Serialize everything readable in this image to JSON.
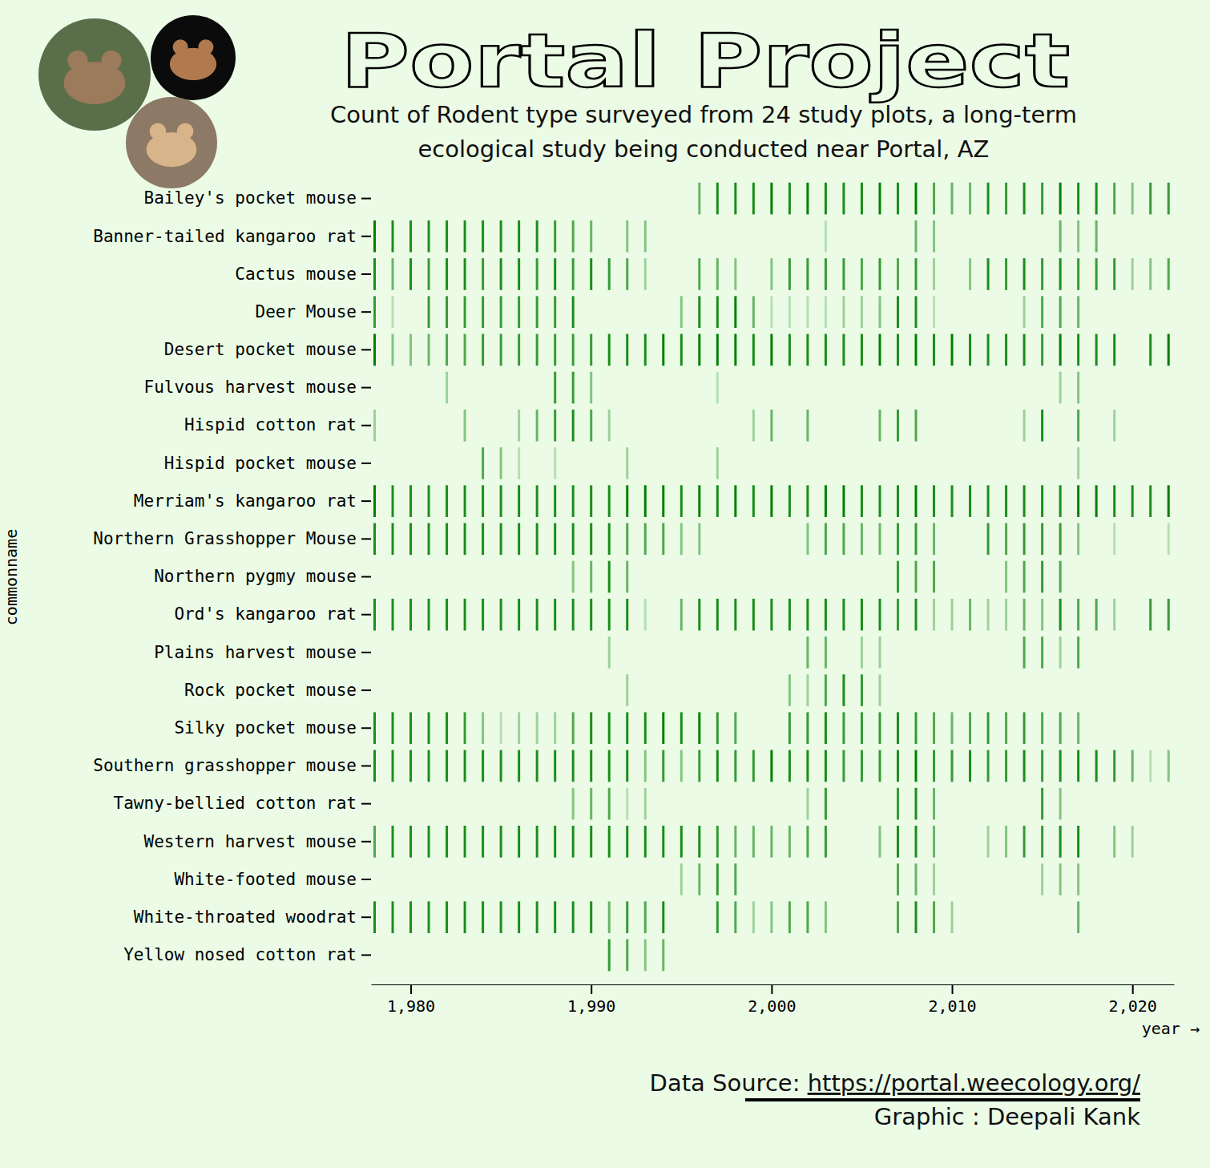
{
  "chart_data": {
    "type": "tick_strip",
    "title": "Portal Project",
    "subtitle": [
      "Count of Rodent type surveyed from 24 study plots, a long-term",
      "ecological study being conducted near Portal, AZ"
    ],
    "x_label": "year →",
    "y_label": "commonname",
    "source_label": "Data Source:",
    "source_url": "https://portal.weecology.org/",
    "credit": "Graphic : Deepali Kank",
    "color": "#008000",
    "xlim": [
      1977.8,
      2022.3
    ],
    "xticks": [
      {
        "value": 1980,
        "label": "1,980"
      },
      {
        "value": 1990,
        "label": "1,990"
      },
      {
        "value": 2000,
        "label": "2,000"
      },
      {
        "value": 2010,
        "label": "2,010"
      },
      {
        "value": 2020,
        "label": "2,020"
      }
    ],
    "series": [
      {
        "name": "Bailey's pocket mouse",
        "x": [
          1996,
          1997,
          1998,
          1999,
          2000,
          2001,
          2002,
          2003,
          2004,
          2005,
          2006,
          2007,
          2008,
          2009,
          2010,
          2011,
          2012,
          2013,
          2014,
          2015,
          2016,
          2017,
          2018,
          2019,
          2020,
          2021,
          2022
        ],
        "values": [
          5,
          8,
          8,
          8,
          9,
          8,
          9,
          8,
          8,
          8,
          9,
          8,
          9,
          6,
          5,
          5,
          8,
          7,
          8,
          7,
          9,
          8,
          8,
          6,
          4,
          7,
          7
        ]
      },
      {
        "name": "Banner-tailed kangaroo rat",
        "x": [
          1978,
          1979,
          1980,
          1981,
          1982,
          1983,
          1984,
          1985,
          1986,
          1987,
          1988,
          1989,
          1990,
          1992,
          1993,
          2003,
          2008,
          2009,
          2016,
          2017,
          2018
        ],
        "values": [
          9,
          8,
          8,
          8,
          8,
          8,
          8,
          8,
          8,
          8,
          7,
          6,
          5,
          4,
          4,
          2,
          5,
          4,
          5,
          4,
          5
        ]
      },
      {
        "name": "Cactus mouse",
        "x": [
          1978,
          1979,
          1980,
          1981,
          1982,
          1983,
          1984,
          1985,
          1986,
          1987,
          1988,
          1989,
          1990,
          1991,
          1992,
          1993,
          1996,
          1997,
          1998,
          2000,
          2001,
          2002,
          2003,
          2004,
          2005,
          2006,
          2007,
          2008,
          2009,
          2011,
          2012,
          2013,
          2014,
          2015,
          2016,
          2017,
          2018,
          2019,
          2020,
          2021,
          2022
        ],
        "values": [
          8,
          5,
          8,
          7,
          8,
          8,
          7,
          8,
          8,
          7,
          8,
          7,
          8,
          7,
          6,
          3,
          6,
          5,
          4,
          4,
          7,
          7,
          7,
          7,
          6,
          7,
          6,
          7,
          3,
          4,
          8,
          7,
          8,
          7,
          8,
          7,
          7,
          7,
          3,
          4,
          6
        ]
      },
      {
        "name": "Deer Mouse",
        "x": [
          1978,
          1979,
          1981,
          1982,
          1983,
          1984,
          1985,
          1986,
          1987,
          1988,
          1989,
          1995,
          1996,
          1997,
          1998,
          1999,
          2000,
          2001,
          2002,
          2003,
          2004,
          2005,
          2006,
          2007,
          2008,
          2009,
          2014,
          2015,
          2016,
          2017
        ],
        "values": [
          7,
          2,
          7,
          7,
          7,
          7,
          7,
          7,
          7,
          7,
          8,
          4,
          8,
          8,
          9,
          5,
          2,
          2,
          2,
          2,
          3,
          3,
          4,
          8,
          8,
          2,
          3,
          6,
          6,
          5
        ]
      },
      {
        "name": "Desert pocket mouse",
        "x": [
          1978,
          1979,
          1980,
          1981,
          1982,
          1983,
          1984,
          1985,
          1986,
          1987,
          1988,
          1989,
          1990,
          1991,
          1992,
          1993,
          1994,
          1995,
          1996,
          1997,
          1998,
          1999,
          2000,
          2001,
          2002,
          2003,
          2004,
          2005,
          2006,
          2007,
          2008,
          2009,
          2010,
          2011,
          2012,
          2013,
          2014,
          2015,
          2016,
          2017,
          2018,
          2019,
          2021,
          2022
        ],
        "values": [
          9,
          4,
          4,
          5,
          6,
          6,
          7,
          7,
          7,
          7,
          7,
          7,
          7,
          8,
          8,
          8,
          9,
          8,
          9,
          9,
          9,
          8,
          9,
          8,
          8,
          8,
          8,
          8,
          9,
          8,
          9,
          8,
          9,
          8,
          8,
          8,
          8,
          7,
          9,
          8,
          8,
          8,
          8,
          9
        ]
      },
      {
        "name": "Fulvous harvest mouse",
        "x": [
          1982,
          1988,
          1989,
          1990,
          1997,
          2016,
          2017
        ],
        "values": [
          3,
          7,
          7,
          4,
          2,
          3,
          4
        ]
      },
      {
        "name": "Hispid cotton rat",
        "x": [
          1978,
          1983,
          1986,
          1987,
          1988,
          1989,
          1990,
          1991,
          1999,
          2000,
          2002,
          2006,
          2007,
          2008,
          2014,
          2015,
          2017,
          2019
        ],
        "values": [
          3,
          4,
          3,
          5,
          7,
          8,
          6,
          3,
          3,
          5,
          5,
          5,
          7,
          6,
          3,
          8,
          6,
          3
        ]
      },
      {
        "name": "Hispid pocket mouse",
        "x": [
          1984,
          1985,
          1986,
          1988,
          1992,
          1997,
          2017
        ],
        "values": [
          6,
          4,
          2,
          2,
          3,
          3,
          3
        ]
      },
      {
        "name": "Merriam's kangaroo rat",
        "x": [
          1978,
          1979,
          1980,
          1981,
          1982,
          1983,
          1984,
          1985,
          1986,
          1987,
          1988,
          1989,
          1990,
          1991,
          1992,
          1993,
          1994,
          1995,
          1996,
          1997,
          1998,
          1999,
          2000,
          2001,
          2002,
          2003,
          2004,
          2005,
          2006,
          2007,
          2008,
          2009,
          2010,
          2011,
          2012,
          2013,
          2014,
          2015,
          2016,
          2017,
          2018,
          2019,
          2020,
          2021,
          2022
        ],
        "values": [
          9,
          8,
          8,
          8,
          8,
          8,
          8,
          8,
          8,
          8,
          8,
          8,
          8,
          8,
          9,
          9,
          9,
          8,
          9,
          8,
          9,
          8,
          9,
          8,
          8,
          9,
          9,
          8,
          8,
          8,
          9,
          8,
          8,
          8,
          8,
          8,
          8,
          8,
          8,
          9,
          9,
          8,
          8,
          8,
          9
        ]
      },
      {
        "name": "Northern Grasshopper Mouse",
        "x": [
          1978,
          1979,
          1980,
          1981,
          1982,
          1983,
          1984,
          1985,
          1986,
          1987,
          1988,
          1989,
          1990,
          1991,
          1992,
          1993,
          1994,
          1995,
          1996,
          2002,
          2003,
          2004,
          2005,
          2006,
          2007,
          2008,
          2009,
          2012,
          2013,
          2014,
          2015,
          2016,
          2017,
          2019,
          2022
        ],
        "values": [
          8,
          8,
          8,
          8,
          8,
          8,
          8,
          8,
          8,
          8,
          8,
          8,
          8,
          8,
          6,
          6,
          6,
          4,
          4,
          4,
          6,
          6,
          5,
          5,
          7,
          7,
          5,
          7,
          6,
          7,
          7,
          7,
          4,
          2,
          2
        ]
      },
      {
        "name": "Northern pygmy mouse",
        "x": [
          1989,
          1990,
          1991,
          1992,
          2007,
          2008,
          2009,
          2013,
          2014,
          2015,
          2016
        ],
        "values": [
          4,
          5,
          8,
          5,
          7,
          6,
          6,
          4,
          6,
          7,
          6
        ]
      },
      {
        "name": "Ord's kangaroo rat",
        "x": [
          1978,
          1979,
          1980,
          1981,
          1982,
          1983,
          1984,
          1985,
          1986,
          1987,
          1988,
          1989,
          1990,
          1991,
          1992,
          1993,
          1995,
          1996,
          1997,
          1998,
          1999,
          2000,
          2001,
          2002,
          2003,
          2004,
          2005,
          2006,
          2007,
          2008,
          2009,
          2010,
          2011,
          2012,
          2013,
          2014,
          2015,
          2016,
          2017,
          2018,
          2019,
          2021,
          2022
        ],
        "values": [
          8,
          8,
          8,
          8,
          8,
          8,
          8,
          8,
          8,
          8,
          8,
          8,
          8,
          8,
          8,
          2,
          5,
          8,
          8,
          8,
          8,
          8,
          8,
          8,
          8,
          8,
          8,
          8,
          7,
          8,
          3,
          3,
          5,
          3,
          3,
          5,
          4,
          8,
          6,
          6,
          3,
          7,
          7
        ]
      },
      {
        "name": "Plains harvest mouse",
        "x": [
          1991,
          2002,
          2003,
          2005,
          2006,
          2014,
          2015,
          2016,
          2017
        ],
        "values": [
          3,
          5,
          5,
          3,
          3,
          6,
          6,
          3,
          6
        ]
      },
      {
        "name": "Rock pocket mouse",
        "x": [
          1992,
          2001,
          2002,
          2003,
          2004,
          2005,
          2006
        ],
        "values": [
          3,
          4,
          3,
          6,
          8,
          7,
          3
        ]
      },
      {
        "name": "Silky pocket mouse",
        "x": [
          1978,
          1979,
          1980,
          1981,
          1982,
          1983,
          1984,
          1985,
          1986,
          1987,
          1988,
          1989,
          1990,
          1991,
          1992,
          1993,
          1994,
          1995,
          1996,
          1997,
          1998,
          2001,
          2002,
          2003,
          2004,
          2005,
          2006,
          2007,
          2008,
          2009,
          2010,
          2011,
          2012,
          2013,
          2014,
          2015,
          2016,
          2017
        ],
        "values": [
          8,
          8,
          8,
          8,
          8,
          7,
          4,
          2,
          3,
          3,
          3,
          6,
          8,
          8,
          8,
          8,
          9,
          8,
          9,
          7,
          6,
          7,
          7,
          8,
          7,
          7,
          7,
          8,
          7,
          6,
          5,
          6,
          7,
          6,
          7,
          6,
          6,
          5
        ]
      },
      {
        "name": "Southern grasshopper mouse",
        "x": [
          1978,
          1979,
          1980,
          1981,
          1982,
          1983,
          1984,
          1985,
          1986,
          1987,
          1988,
          1989,
          1990,
          1991,
          1992,
          1993,
          1994,
          1995,
          1996,
          1997,
          1998,
          1999,
          2000,
          2001,
          2002,
          2003,
          2004,
          2005,
          2006,
          2007,
          2008,
          2009,
          2010,
          2011,
          2012,
          2013,
          2014,
          2015,
          2016,
          2017,
          2018,
          2019,
          2020,
          2021,
          2022
        ],
        "values": [
          8,
          8,
          8,
          8,
          8,
          8,
          8,
          8,
          8,
          8,
          8,
          8,
          8,
          8,
          8,
          4,
          7,
          4,
          7,
          8,
          7,
          7,
          9,
          8,
          8,
          8,
          7,
          7,
          7,
          8,
          9,
          7,
          7,
          8,
          7,
          7,
          8,
          7,
          8,
          8,
          8,
          7,
          5,
          2,
          4
        ]
      },
      {
        "name": "Tawny-bellied cotton rat",
        "x": [
          1989,
          1990,
          1991,
          1992,
          1993,
          2002,
          2003,
          2007,
          2008,
          2009,
          2015,
          2016
        ],
        "values": [
          4,
          5,
          6,
          2,
          3,
          3,
          7,
          7,
          8,
          5,
          7,
          4
        ]
      },
      {
        "name": "Western harvest mouse",
        "x": [
          1978,
          1979,
          1980,
          1981,
          1982,
          1983,
          1984,
          1985,
          1986,
          1987,
          1988,
          1989,
          1990,
          1991,
          1992,
          1993,
          1994,
          1995,
          1996,
          1997,
          1998,
          1999,
          2000,
          2001,
          2002,
          2003,
          2006,
          2007,
          2008,
          2009,
          2012,
          2013,
          2014,
          2015,
          2016,
          2017,
          2019,
          2020
        ],
        "values": [
          6,
          8,
          8,
          8,
          8,
          8,
          8,
          8,
          8,
          8,
          8,
          8,
          8,
          8,
          8,
          8,
          8,
          8,
          8,
          7,
          5,
          5,
          5,
          5,
          6,
          7,
          4,
          8,
          8,
          5,
          3,
          4,
          7,
          7,
          8,
          8,
          4,
          3
        ]
      },
      {
        "name": "White-footed mouse",
        "x": [
          1995,
          1996,
          1997,
          1998,
          2007,
          2008,
          2009,
          2015,
          2016,
          2017
        ],
        "values": [
          3,
          5,
          7,
          6,
          6,
          5,
          3,
          3,
          4,
          4
        ]
      },
      {
        "name": "White-throated woodrat",
        "x": [
          1978,
          1979,
          1980,
          1981,
          1982,
          1983,
          1984,
          1985,
          1986,
          1987,
          1988,
          1989,
          1990,
          1991,
          1992,
          1993,
          1994,
          1997,
          1998,
          1999,
          2000,
          2001,
          2002,
          2003,
          2007,
          2008,
          2009,
          2010,
          2017
        ],
        "values": [
          8,
          8,
          8,
          8,
          8,
          8,
          8,
          8,
          8,
          8,
          8,
          8,
          8,
          5,
          7,
          6,
          8,
          7,
          6,
          3,
          4,
          6,
          6,
          4,
          6,
          8,
          6,
          3,
          5
        ]
      },
      {
        "name": "Yellow nosed cotton rat",
        "x": [
          1991,
          1992,
          1993,
          1994
        ],
        "values": [
          7,
          6,
          4,
          5
        ]
      }
    ]
  }
}
